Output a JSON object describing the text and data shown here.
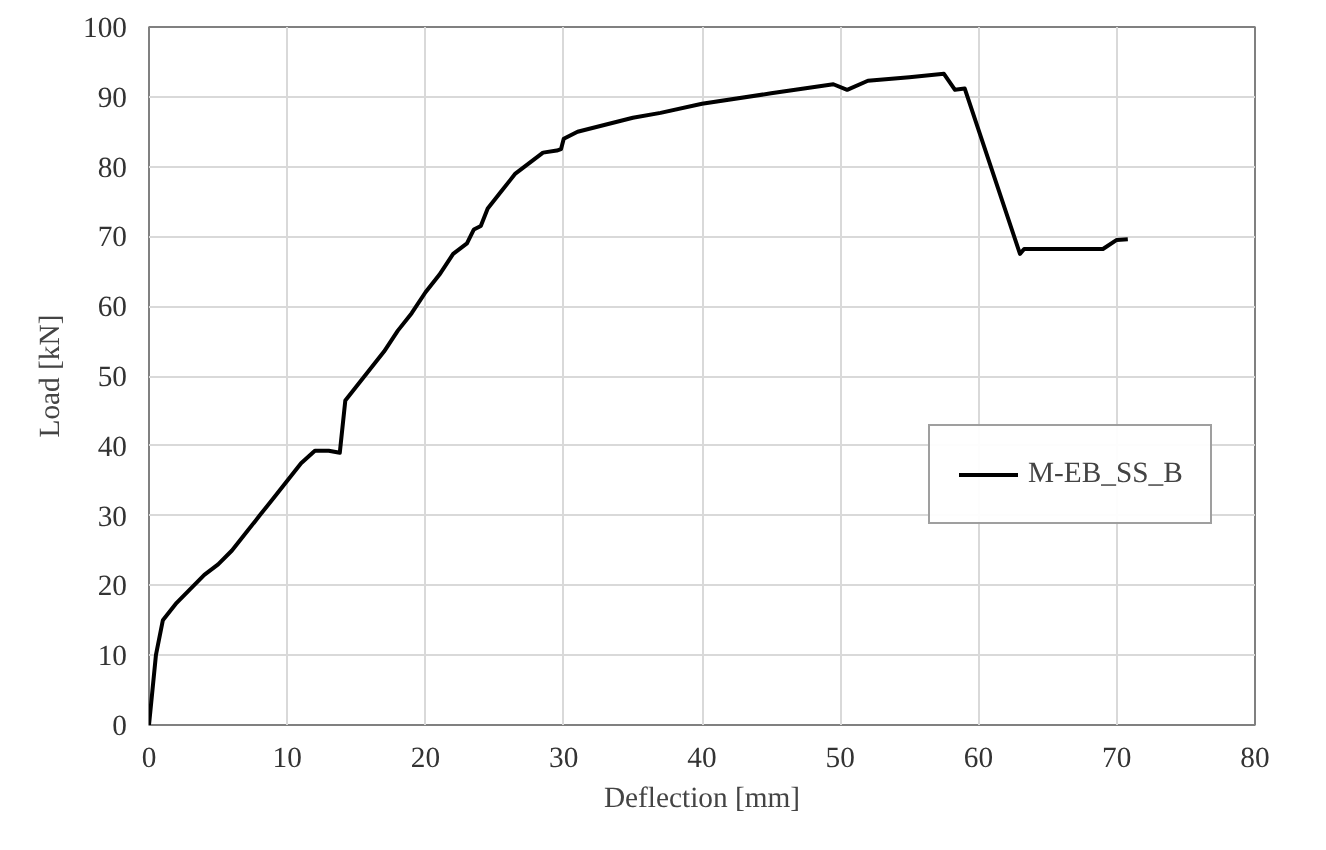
{
  "chart_data": {
    "type": "line",
    "xlabel": "Deflection [mm]",
    "ylabel": "Load [kN]",
    "xlim": [
      0,
      80
    ],
    "ylim": [
      0,
      100
    ],
    "xticks": [
      0,
      10,
      20,
      30,
      40,
      50,
      60,
      70,
      80
    ],
    "yticks": [
      0,
      10,
      20,
      30,
      40,
      50,
      60,
      70,
      80,
      90,
      100
    ],
    "grid": true,
    "legend": "right",
    "marker": "none",
    "line_style": "solid",
    "series": [
      {
        "name": "M-EB_SS_B",
        "color": "#000000",
        "x": [
          0,
          0.5,
          1,
          2,
          3,
          4,
          5,
          6,
          7,
          8,
          9,
          10,
          11,
          12,
          13,
          13.8,
          14.2,
          15,
          16,
          17,
          18,
          19,
          20,
          21,
          22,
          23,
          23.5,
          24,
          24.5,
          25.5,
          26.5,
          27.5,
          28.5,
          29.5,
          29.8,
          30,
          31,
          33,
          35,
          37,
          40,
          45,
          49.5,
          50.5,
          52,
          55,
          57.5,
          58.3,
          59,
          63,
          63.3,
          69,
          70,
          70.8
        ],
        "values": [
          0,
          10,
          15,
          17.5,
          19.5,
          21.5,
          23,
          25,
          27.5,
          30,
          32.5,
          35,
          37.5,
          39.3,
          39.3,
          39,
          46.5,
          48.5,
          51,
          53.5,
          56.5,
          59,
          62,
          64.5,
          67.5,
          69,
          71,
          71.5,
          74,
          76.5,
          79,
          80.5,
          82,
          82.3,
          82.5,
          84,
          85,
          86,
          87,
          87.7,
          89,
          90.5,
          91.8,
          91,
          92.3,
          92.8,
          93.3,
          91,
          91.2,
          67.5,
          68.2,
          68.2,
          69.5,
          69.6
        ]
      }
    ]
  }
}
